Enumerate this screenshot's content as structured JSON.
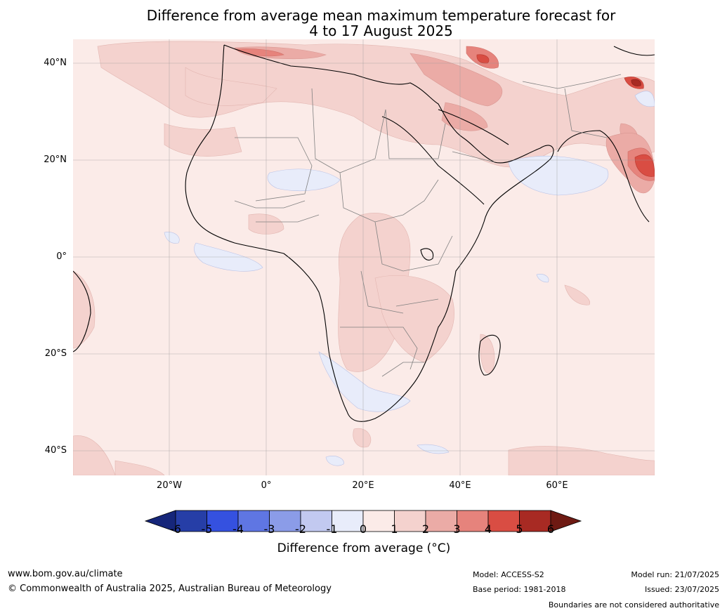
{
  "title_line1": "Difference from average mean maximum temperature forecast for",
  "title_line2": "4 to 17 August 2025",
  "lat_labels": [
    "40°N",
    "20°N",
    "0°",
    "20°S",
    "40°S"
  ],
  "lon_labels": [
    "20°W",
    "0°",
    "20°E",
    "40°E",
    "60°E"
  ],
  "colorbar": {
    "ticks": [
      "-6",
      "-5",
      "-4",
      "-3",
      "-2",
      "-1",
      "0",
      "1",
      "2",
      "3",
      "4",
      "5",
      "6"
    ],
    "colors": [
      "#263ea7",
      "#3551e0",
      "#5f76e3",
      "#8b9ce8",
      "#c2c9f0",
      "#e8ecfa",
      "#fbebe8",
      "#f4d2ce",
      "#ebaba6",
      "#e6837c",
      "#d94d43",
      "#a82a23"
    ],
    "low_extend_color": "#16267a",
    "high_extend_color": "#6e1a13",
    "label": "Difference from average (°C)"
  },
  "footer": {
    "url": "www.bom.gov.au/climate",
    "copyright": "© Commonwealth of Australia 2025, Australian Bureau of Meteorology",
    "model": "Model: ACCESS-S2",
    "base_period": "Base period: 1981-2018",
    "model_run": "Model run: 21/07/2025",
    "issued": "Issued: 23/07/2025",
    "disclaimer": "Boundaries are not considered authoritative"
  }
}
